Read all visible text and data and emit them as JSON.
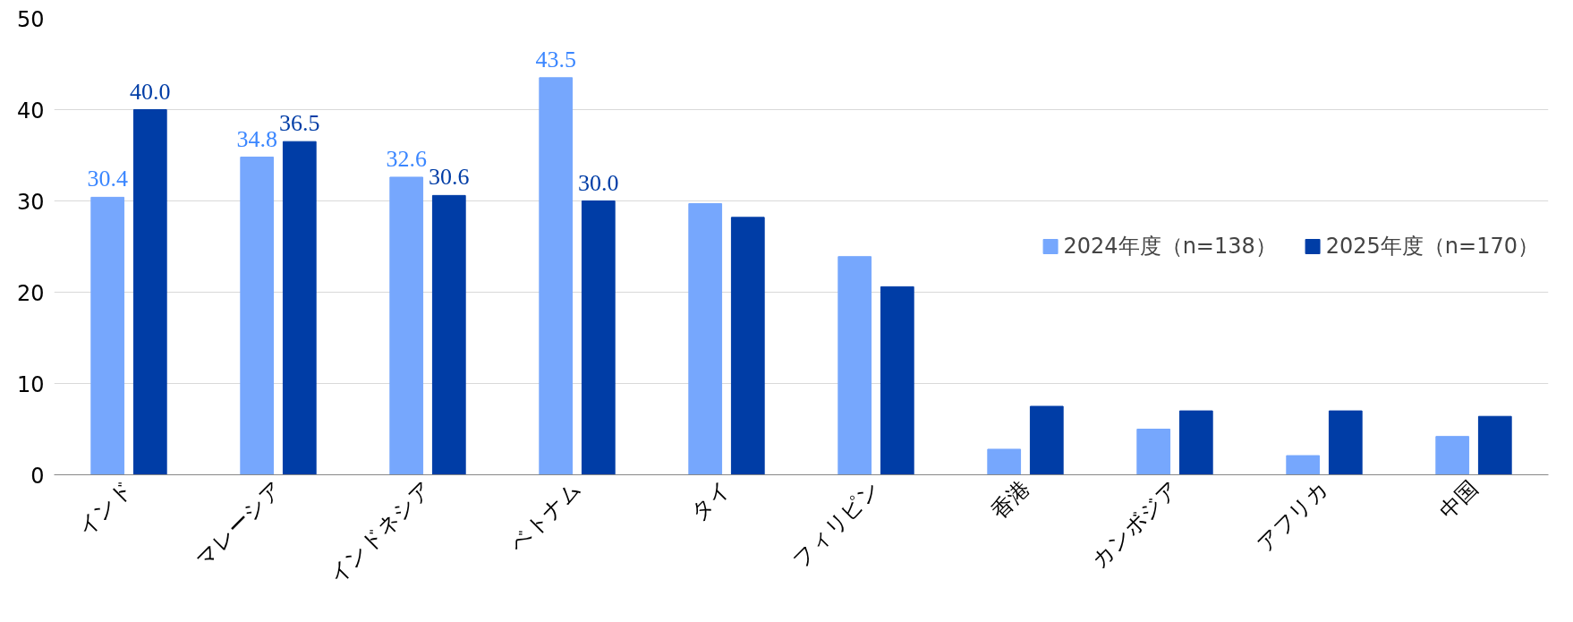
{
  "chart_data": {
    "type": "bar",
    "categories": [
      "インド",
      "マレーシア",
      "インドネシア",
      "ベトナム",
      "タイ",
      "フィリピン",
      "香港",
      "カンボジア",
      "アフリカ",
      "中国"
    ],
    "series": [
      {
        "name": "2024年度（n=138）",
        "color": "#76a7fd",
        "values": [
          30.4,
          34.8,
          32.6,
          43.5,
          29.7,
          23.9,
          2.8,
          5.0,
          2.1,
          4.2
        ],
        "value_labels": [
          "30.4",
          "34.8",
          "32.6",
          "43.5",
          null,
          null,
          null,
          null,
          null,
          null
        ]
      },
      {
        "name": "2025年度（n=170）",
        "color": "#003da6",
        "values": [
          40.0,
          36.5,
          30.6,
          30.0,
          28.2,
          20.6,
          7.5,
          7.0,
          7.0,
          6.4
        ],
        "value_labels": [
          "40.0",
          "36.5",
          "30.6",
          "30.0",
          null,
          null,
          null,
          null,
          null,
          null
        ]
      }
    ],
    "ylim": [
      0,
      50
    ],
    "yticks": [
      0,
      10,
      20,
      30,
      40,
      50
    ],
    "grid": "y",
    "legend": "right"
  }
}
